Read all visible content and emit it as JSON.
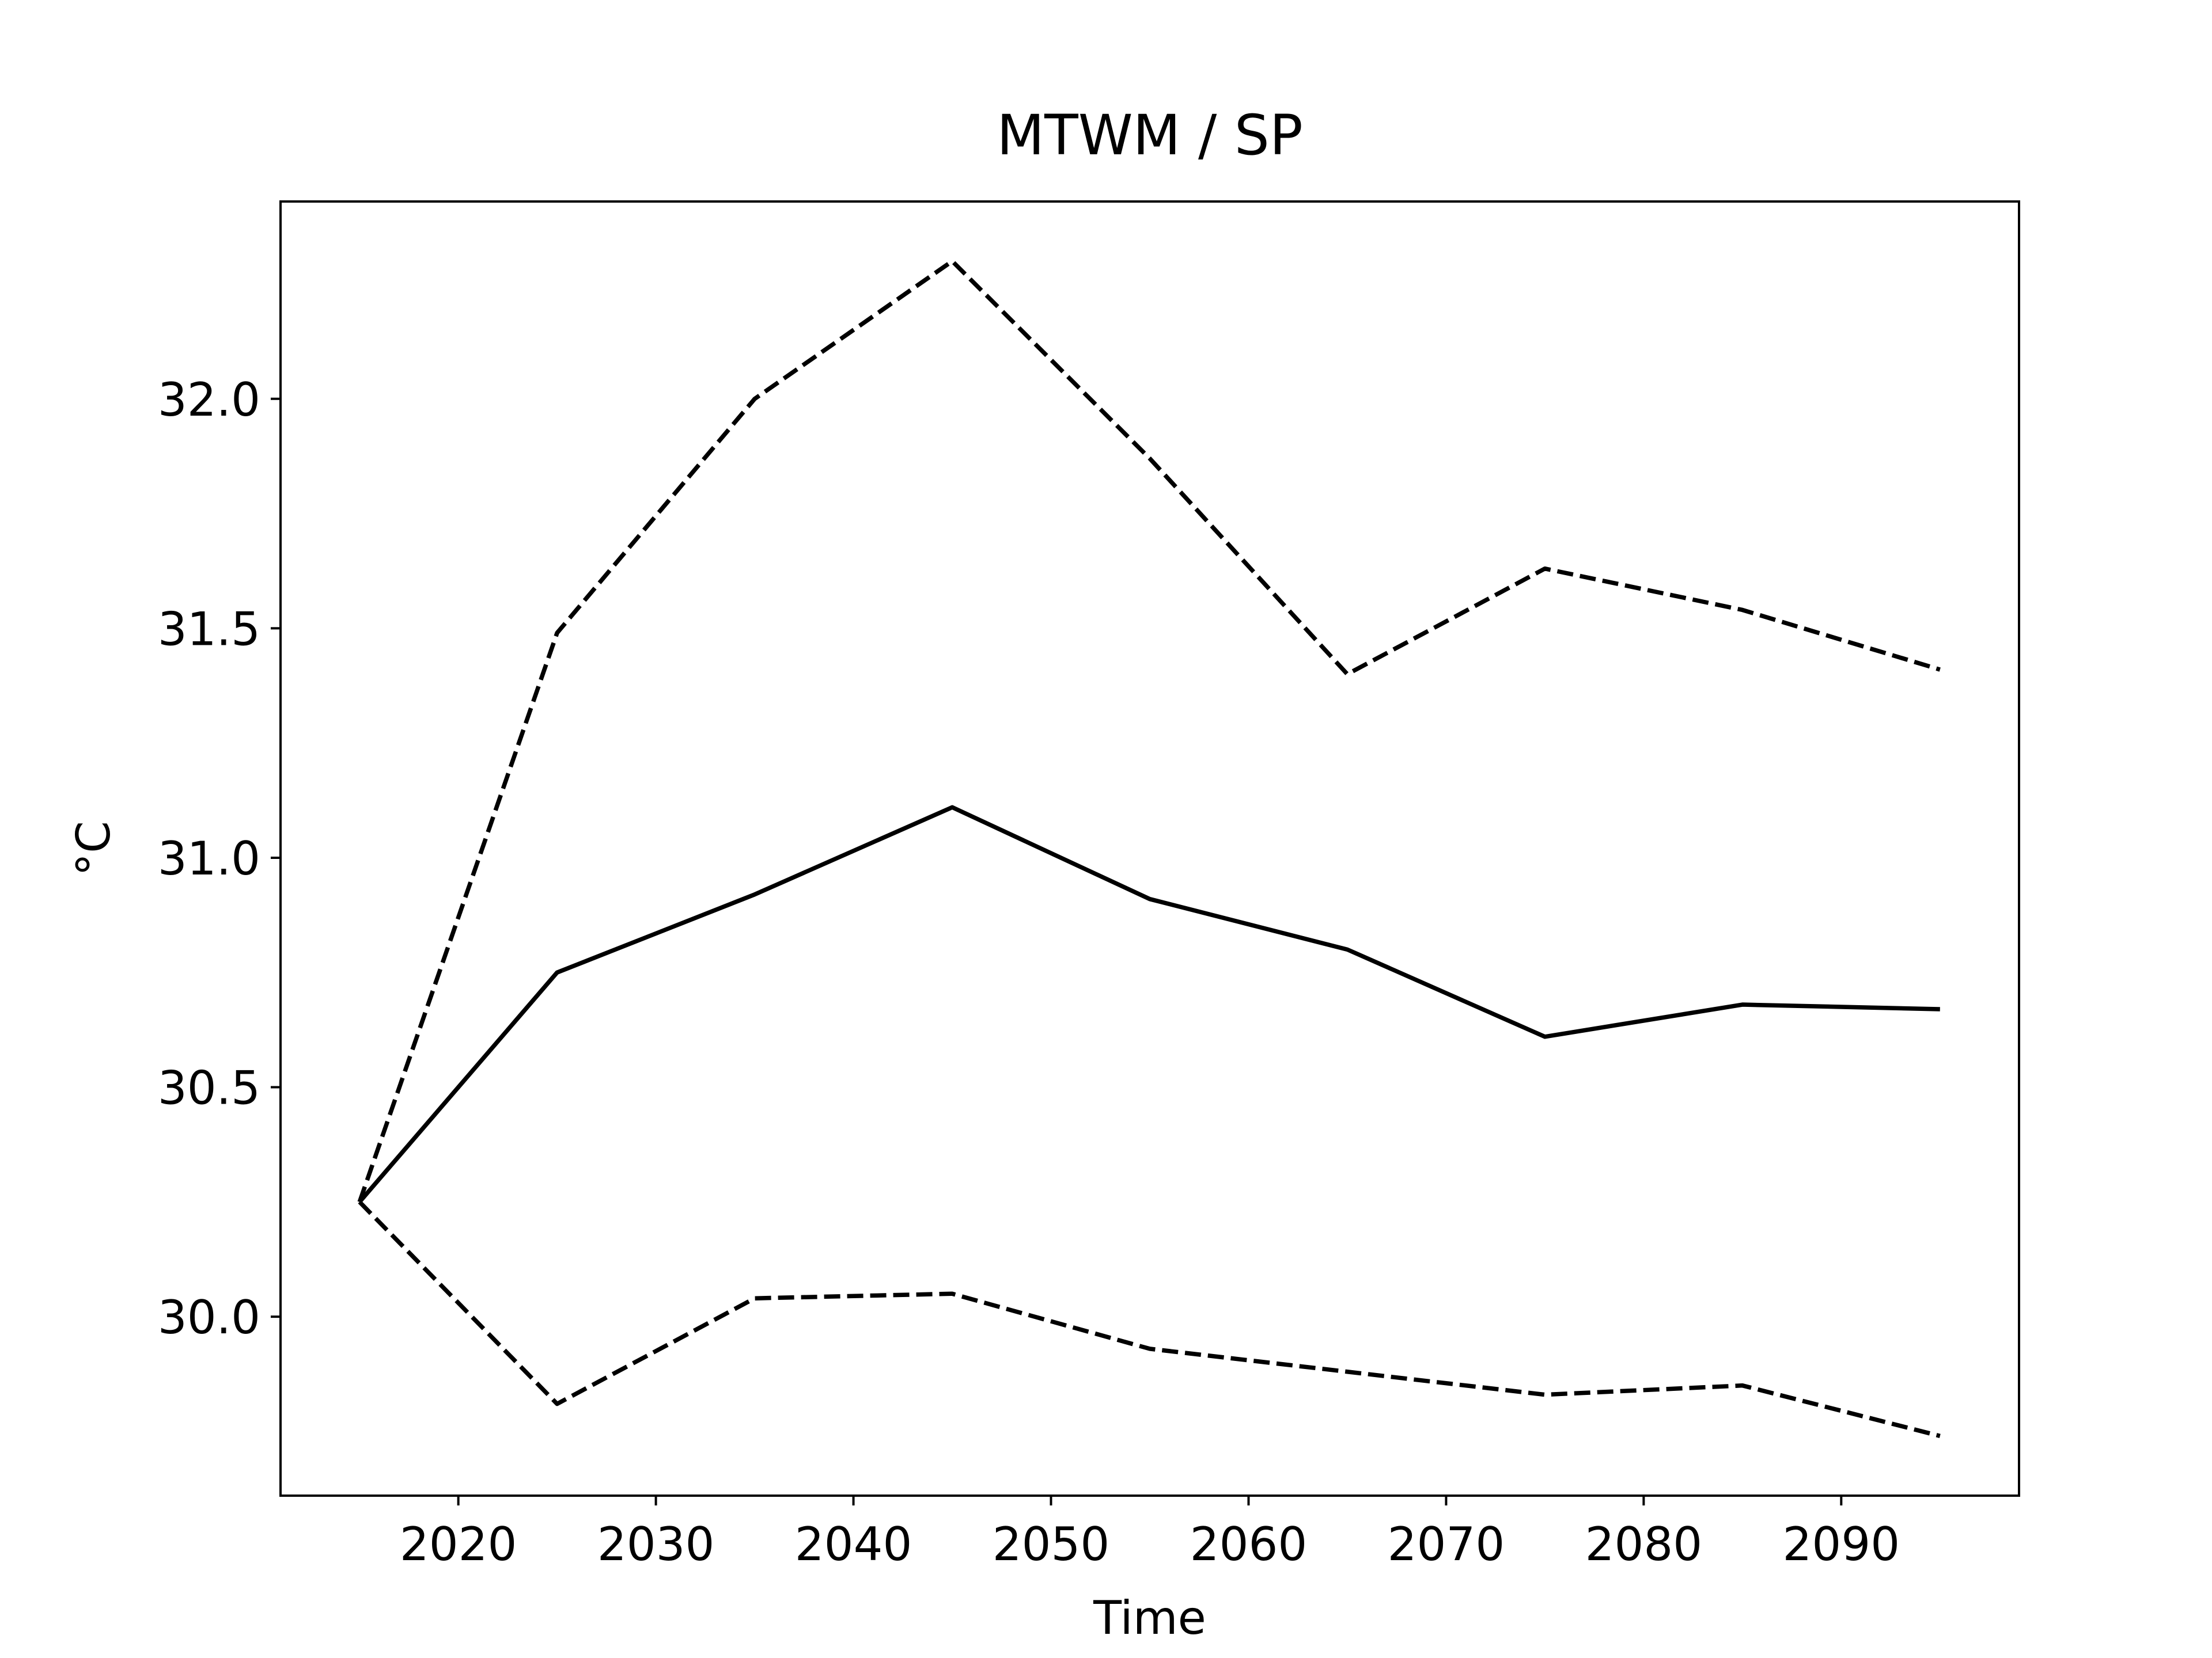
{
  "chart_data": {
    "type": "line",
    "title": "MTWM / SP",
    "x_label": "Time",
    "y_label": "°C",
    "x": [
      2015,
      2025,
      2035,
      2045,
      2055,
      2065,
      2075,
      2085,
      2095
    ],
    "series": [
      {
        "color": "#000000",
        "style": "solid",
        "values": [
          30.25,
          30.75,
          30.92,
          31.11,
          30.91,
          30.8,
          30.61,
          30.68,
          30.67
        ]
      },
      {
        "color": "#000000",
        "style": "dashed",
        "values": [
          30.25,
          31.49,
          32.0,
          32.3,
          31.87,
          31.4,
          31.63,
          31.54,
          31.41
        ]
      },
      {
        "color": "#000000",
        "style": "dashed",
        "values": [
          30.25,
          29.81,
          30.04,
          30.05,
          29.93,
          29.88,
          29.83,
          29.85,
          29.74
        ]
      }
    ],
    "xlim": [
      2011,
      2099
    ],
    "ylim": [
      29.61,
      32.43
    ],
    "xticks": [
      2020,
      2030,
      2040,
      2050,
      2060,
      2070,
      2080,
      2090
    ],
    "yticks": [
      {
        "value": 30,
        "label": "30.0"
      },
      {
        "value": 30.5,
        "label": "30.5"
      },
      {
        "value": 31,
        "label": "31.0"
      },
      {
        "value": 31.5,
        "label": "31.5"
      },
      {
        "value": 32,
        "label": "32.0"
      }
    ],
    "grid": false
  }
}
